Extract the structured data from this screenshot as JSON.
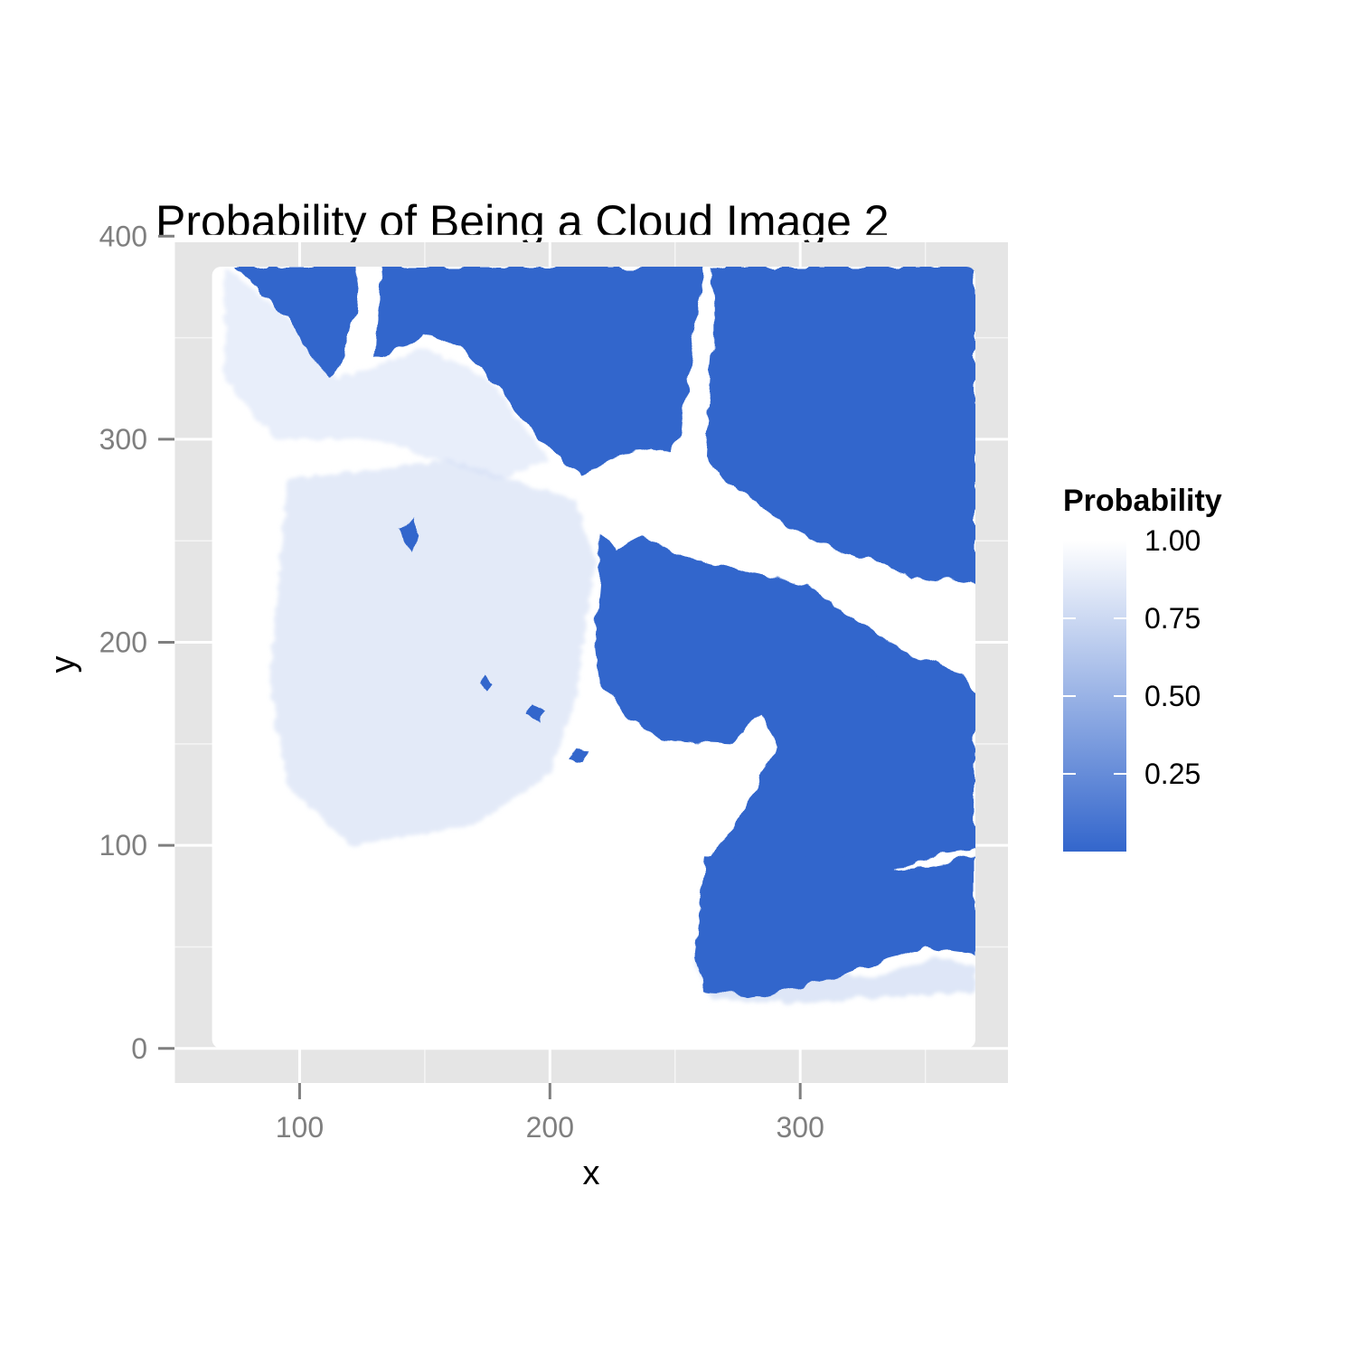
{
  "chart_data": {
    "type": "heatmap",
    "title": "Probability of Being a Cloud Image 2",
    "xlabel": "x",
    "ylabel": "y",
    "xlim": [
      50,
      383
    ],
    "ylim": [
      -17,
      397
    ],
    "x_ticks": [
      100,
      200,
      300
    ],
    "y_ticks": [
      0,
      100,
      200,
      300,
      400
    ],
    "x_tick_labels": [
      "100",
      "200",
      "300"
    ],
    "y_tick_labels": [
      "0",
      "100",
      "200",
      "300",
      "400"
    ],
    "data_extent": {
      "x": [
        65,
        370
      ],
      "y": [
        0,
        385
      ]
    },
    "grid": true,
    "legend": {
      "title": "Probability",
      "position": "right",
      "range": [
        0,
        1
      ],
      "ticks": [
        1.0,
        0.75,
        0.5,
        0.25
      ],
      "tick_labels": [
        "1.00",
        "0.75",
        "0.50",
        "0.25"
      ],
      "low_color": "#3366cc",
      "high_color": "#ffffff"
    },
    "background_color": "#e5e5e5",
    "gridline_color": "#ffffff",
    "low_prob_regions": [
      {
        "name": "top-left clear",
        "polygon": [
          [
            65,
            385
          ],
          [
            75,
            385
          ],
          [
            85,
            370
          ],
          [
            95,
            360
          ],
          [
            105,
            340
          ],
          [
            112,
            330
          ],
          [
            118,
            340
          ],
          [
            122,
            360
          ],
          [
            124,
            385
          ],
          [
            65,
            385
          ]
        ]
      },
      {
        "name": "top band clear",
        "polygon": [
          [
            133,
            385
          ],
          [
            262,
            385
          ],
          [
            257,
            345
          ],
          [
            252,
            302
          ],
          [
            248,
            292
          ],
          [
            240,
            296
          ],
          [
            225,
            290
          ],
          [
            212,
            282
          ],
          [
            195,
            300
          ],
          [
            180,
            325
          ],
          [
            165,
            345
          ],
          [
            150,
            352
          ],
          [
            140,
            345
          ],
          [
            130,
            340
          ],
          [
            133,
            385
          ]
        ]
      },
      {
        "name": "right clear",
        "polygon": [
          [
            265,
            385
          ],
          [
            370,
            385
          ],
          [
            370,
            228
          ],
          [
            355,
            232
          ],
          [
            345,
            230
          ],
          [
            335,
            238
          ],
          [
            312,
            247
          ],
          [
            288,
            262
          ],
          [
            268,
            282
          ],
          [
            262,
            292
          ],
          [
            265,
            345
          ],
          [
            265,
            385
          ]
        ]
      },
      {
        "name": "inlet clear",
        "polygon": [
          [
            220,
            255
          ],
          [
            226,
            245
          ],
          [
            237,
            252
          ],
          [
            260,
            240
          ],
          [
            290,
            232
          ],
          [
            302,
            228
          ],
          [
            318,
            215
          ],
          [
            335,
            200
          ],
          [
            348,
            192
          ],
          [
            365,
            185
          ],
          [
            370,
            175
          ],
          [
            370,
            97
          ],
          [
            355,
            95
          ],
          [
            345,
            90
          ],
          [
            330,
            88
          ],
          [
            325,
            82
          ],
          [
            320,
            72
          ],
          [
            305,
            45
          ],
          [
            285,
            42
          ],
          [
            268,
            45
          ],
          [
            262,
            60
          ],
          [
            265,
            95
          ],
          [
            278,
            118
          ],
          [
            290,
            150
          ],
          [
            285,
            165
          ],
          [
            272,
            150
          ],
          [
            245,
            152
          ],
          [
            230,
            164
          ],
          [
            220,
            180
          ],
          [
            218,
            200
          ],
          [
            220,
            230
          ],
          [
            220,
            255
          ]
        ]
      },
      {
        "name": "lower-right clear",
        "polygon": [
          [
            262,
            95
          ],
          [
            330,
            93
          ],
          [
            340,
            88
          ],
          [
            355,
            90
          ],
          [
            370,
            95
          ],
          [
            370,
            45
          ],
          [
            350,
            50
          ],
          [
            325,
            40
          ],
          [
            300,
            30
          ],
          [
            280,
            25
          ],
          [
            262,
            28
          ],
          [
            258,
            45
          ],
          [
            262,
            95
          ]
        ]
      },
      {
        "name": "spot 1",
        "polygon": [
          [
            172,
            180
          ],
          [
            175,
            176
          ],
          [
            178,
            180
          ],
          [
            175,
            184
          ]
        ]
      },
      {
        "name": "spot 2",
        "polygon": [
          [
            190,
            163
          ],
          [
            196,
            160
          ],
          [
            199,
            166
          ],
          [
            193,
            169
          ]
        ]
      },
      {
        "name": "spot 3",
        "polygon": [
          [
            208,
            143
          ],
          [
            213,
            141
          ],
          [
            215,
            147
          ],
          [
            210,
            149
          ]
        ]
      },
      {
        "name": "spot 4",
        "polygon": [
          [
            140,
            255
          ],
          [
            144,
            245
          ],
          [
            148,
            253
          ],
          [
            145,
            262
          ]
        ]
      },
      {
        "name": "spot 5",
        "polygon": [
          [
            325,
            180
          ],
          [
            330,
            178
          ],
          [
            333,
            183
          ],
          [
            327,
            186
          ]
        ]
      }
    ],
    "mid_prob_regions": [
      {
        "name": "dappled interior",
        "value": 0.75,
        "polygon": [
          [
            95,
            280
          ],
          [
            160,
            290
          ],
          [
            210,
            270
          ],
          [
            218,
            240
          ],
          [
            210,
            170
          ],
          [
            200,
            135
          ],
          [
            170,
            110
          ],
          [
            120,
            100
          ],
          [
            95,
            130
          ],
          [
            88,
            180
          ],
          [
            95,
            280
          ]
        ]
      },
      {
        "name": "upper-left fringe",
        "value": 0.8,
        "polygon": [
          [
            70,
            385
          ],
          [
            100,
            355
          ],
          [
            115,
            330
          ],
          [
            128,
            335
          ],
          [
            150,
            345
          ],
          [
            175,
            330
          ],
          [
            200,
            290
          ],
          [
            180,
            280
          ],
          [
            130,
            300
          ],
          [
            90,
            300
          ],
          [
            70,
            330
          ],
          [
            70,
            385
          ]
        ]
      },
      {
        "name": "lower-right speckle",
        "value": 0.7,
        "polygon": [
          [
            262,
            60
          ],
          [
            300,
            40
          ],
          [
            330,
            35
          ],
          [
            355,
            45
          ],
          [
            370,
            40
          ],
          [
            370,
            28
          ],
          [
            330,
            25
          ],
          [
            295,
            22
          ],
          [
            265,
            25
          ],
          [
            258,
            40
          ],
          [
            262,
            60
          ]
        ]
      }
    ]
  }
}
